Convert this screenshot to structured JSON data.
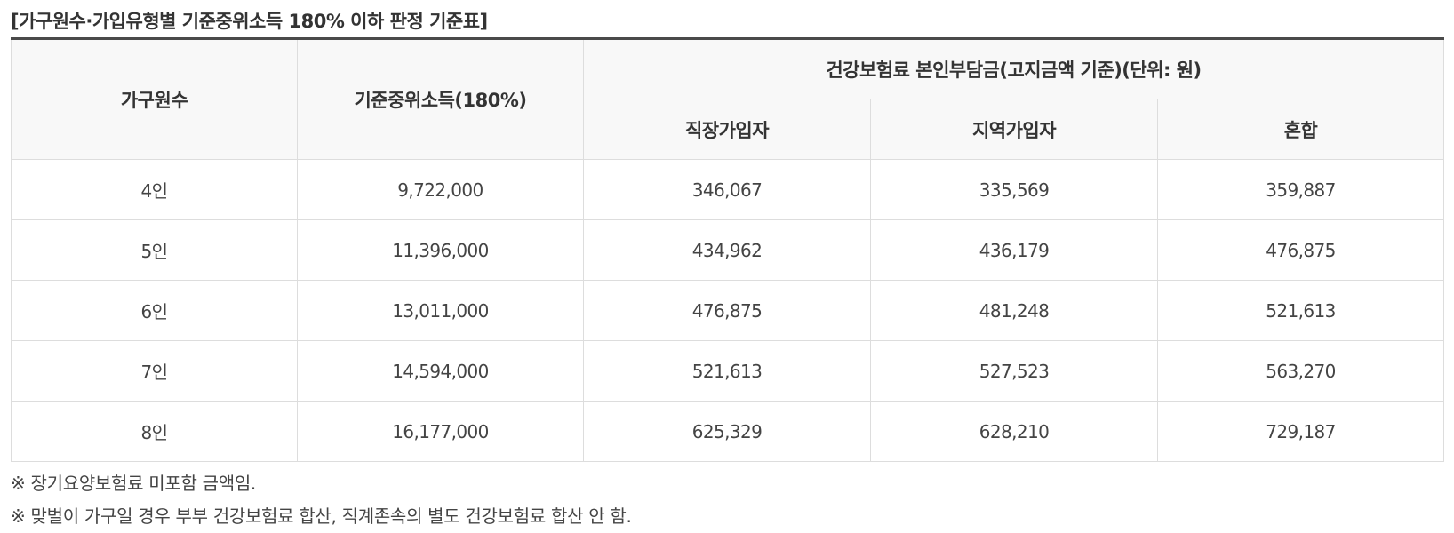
{
  "caption": "[가구원수·가입유형별 기준중위소득 180% 이하 판정 기준표]",
  "table": {
    "headers": {
      "household_size": "가구원수",
      "median_income": "기준중위소득(180%)",
      "premium_group": "건강보험료 본인부담금(고지금액 기준)(단위: 원)",
      "employee": "직장가입자",
      "regional": "지역가입자",
      "mixed": "혼합"
    },
    "rows": [
      [
        "4인",
        "9,722,000",
        "346,067",
        "335,569",
        "359,887"
      ],
      [
        "5인",
        "11,396,000",
        "434,962",
        "436,179",
        "476,875"
      ],
      [
        "6인",
        "13,011,000",
        "476,875",
        "481,248",
        "521,613"
      ],
      [
        "7인",
        "14,594,000",
        "521,613",
        "527,523",
        "563,270"
      ],
      [
        "8인",
        "16,177,000",
        "625,329",
        "628,210",
        "729,187"
      ]
    ]
  },
  "notes": [
    "※ 장기요양보험료 미포함 금액임.",
    "※ 맞벌이 가구일 경우 부부 건강보험료 합산, 직계존속의 별도 건강보험료 합산 안 함."
  ],
  "colors": {
    "header_bg": "#f8f8f8",
    "top_rule": "#4a4a4a",
    "border": "#dddddd",
    "text": "#333333"
  }
}
